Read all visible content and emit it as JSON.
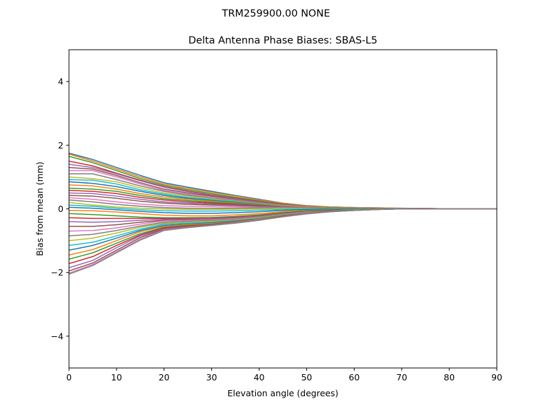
{
  "figure": {
    "suptitle": "TRM259900.00    NONE"
  },
  "chart_data": {
    "type": "line",
    "title": "Delta Antenna Phase Biases: SBAS-L5",
    "xlabel": "Elevation angle (degrees)",
    "ylabel": "Bias from mean (mm)",
    "xlim": [
      0,
      90
    ],
    "ylim": [
      -5,
      5
    ],
    "xticks": [
      0,
      10,
      20,
      30,
      40,
      50,
      60,
      70,
      80,
      90
    ],
    "xtick_labels": [
      "0",
      "10",
      "20",
      "30",
      "40",
      "50",
      "60",
      "70",
      "80",
      "90"
    ],
    "yticks": [
      -4,
      -2,
      0,
      2,
      4
    ],
    "ytick_labels": [
      "−4",
      "−2",
      "0",
      "2",
      "4"
    ],
    "grid": false,
    "legend": false,
    "x": [
      0,
      5,
      10,
      15,
      20,
      25,
      30,
      35,
      40,
      45,
      50,
      55,
      60,
      65,
      70,
      75,
      80,
      85,
      90
    ],
    "colors": [
      "#1f77b4",
      "#ff7f0e",
      "#2ca02c",
      "#d62728",
      "#9467bd",
      "#8c564b",
      "#e377c2",
      "#7f7f7f",
      "#bcbd22",
      "#17becf"
    ],
    "series": [
      {
        "values": [
          1.75,
          1.55,
          1.3,
          1.05,
          0.82,
          0.68,
          0.55,
          0.42,
          0.3,
          0.18,
          0.1,
          0.06,
          0.04,
          0.03,
          0.02,
          0.01,
          0.0,
          0.0,
          0.0
        ]
      },
      {
        "values": [
          1.72,
          1.5,
          1.25,
          1.0,
          0.78,
          0.64,
          0.52,
          0.4,
          0.28,
          0.17,
          0.1,
          0.06,
          0.04,
          0.03,
          0.02,
          0.01,
          0.0,
          0.0,
          0.0
        ]
      },
      {
        "values": [
          1.65,
          1.45,
          1.2,
          0.95,
          0.74,
          0.6,
          0.48,
          0.36,
          0.25,
          0.15,
          0.09,
          0.05,
          0.03,
          0.02,
          0.01,
          0.01,
          0.0,
          0.0,
          0.0
        ]
      },
      {
        "values": [
          1.5,
          1.35,
          1.12,
          0.9,
          0.7,
          0.56,
          0.44,
          0.33,
          0.23,
          0.14,
          0.08,
          0.05,
          0.03,
          0.02,
          0.01,
          0.01,
          0.0,
          0.0,
          0.0
        ]
      },
      {
        "values": [
          1.4,
          1.3,
          1.1,
          0.88,
          0.68,
          0.54,
          0.42,
          0.32,
          0.22,
          0.13,
          0.08,
          0.05,
          0.03,
          0.02,
          0.01,
          0.01,
          0.0,
          0.0,
          0.0
        ]
      },
      {
        "values": [
          1.3,
          1.25,
          1.05,
          0.82,
          0.62,
          0.5,
          0.4,
          0.3,
          0.2,
          0.12,
          0.07,
          0.04,
          0.03,
          0.02,
          0.01,
          0.0,
          0.0,
          0.0,
          0.0
        ]
      },
      {
        "values": [
          1.2,
          1.2,
          1.0,
          0.78,
          0.58,
          0.46,
          0.37,
          0.28,
          0.19,
          0.11,
          0.07,
          0.04,
          0.03,
          0.02,
          0.01,
          0.0,
          0.0,
          0.0,
          0.0
        ]
      },
      {
        "values": [
          1.1,
          1.1,
          0.92,
          0.72,
          0.55,
          0.43,
          0.34,
          0.26,
          0.18,
          0.1,
          0.06,
          0.04,
          0.02,
          0.02,
          0.01,
          0.0,
          0.0,
          0.0,
          0.0
        ]
      },
      {
        "values": [
          1.0,
          0.95,
          0.85,
          0.66,
          0.5,
          0.4,
          0.32,
          0.24,
          0.16,
          0.1,
          0.06,
          0.04,
          0.02,
          0.01,
          0.01,
          0.0,
          0.0,
          0.0,
          0.0
        ]
      },
      {
        "values": [
          0.92,
          0.9,
          0.78,
          0.6,
          0.46,
          0.36,
          0.29,
          0.22,
          0.15,
          0.09,
          0.05,
          0.03,
          0.02,
          0.01,
          0.01,
          0.0,
          0.0,
          0.0,
          0.0
        ]
      },
      {
        "values": [
          0.85,
          0.8,
          0.7,
          0.55,
          0.42,
          0.33,
          0.26,
          0.2,
          0.14,
          0.08,
          0.05,
          0.03,
          0.02,
          0.01,
          0.0,
          0.0,
          0.0,
          0.0,
          0.0
        ]
      },
      {
        "values": [
          0.75,
          0.72,
          0.62,
          0.48,
          0.37,
          0.3,
          0.24,
          0.18,
          0.13,
          0.08,
          0.05,
          0.03,
          0.02,
          0.01,
          0.0,
          0.0,
          0.0,
          0.0,
          0.0
        ]
      },
      {
        "values": [
          0.65,
          0.62,
          0.55,
          0.42,
          0.32,
          0.26,
          0.21,
          0.16,
          0.12,
          0.07,
          0.04,
          0.03,
          0.02,
          0.01,
          0.0,
          0.0,
          0.0,
          0.0,
          0.0
        ]
      },
      {
        "values": [
          0.58,
          0.55,
          0.48,
          0.36,
          0.28,
          0.22,
          0.18,
          0.14,
          0.1,
          0.06,
          0.04,
          0.02,
          0.01,
          0.01,
          0.0,
          0.0,
          0.0,
          0.0,
          0.0
        ]
      },
      {
        "values": [
          0.5,
          0.48,
          0.4,
          0.3,
          0.22,
          0.18,
          0.15,
          0.12,
          0.09,
          0.06,
          0.04,
          0.02,
          0.01,
          0.01,
          0.0,
          0.0,
          0.0,
          0.0,
          0.0
        ]
      },
      {
        "values": [
          0.42,
          0.4,
          0.33,
          0.24,
          0.18,
          0.14,
          0.12,
          0.1,
          0.08,
          0.05,
          0.03,
          0.02,
          0.01,
          0.0,
          0.0,
          0.0,
          0.0,
          0.0,
          0.0
        ]
      },
      {
        "values": [
          0.35,
          0.3,
          0.22,
          0.15,
          0.1,
          0.08,
          0.07,
          0.06,
          0.05,
          0.04,
          0.03,
          0.02,
          0.01,
          0.0,
          0.0,
          0.0,
          0.0,
          0.0,
          0.0
        ]
      },
      {
        "values": [
          0.28,
          0.22,
          0.14,
          0.08,
          0.04,
          0.02,
          0.02,
          0.02,
          0.03,
          0.03,
          0.03,
          0.02,
          0.01,
          0.0,
          0.0,
          0.0,
          0.0,
          0.0,
          0.0
        ]
      },
      {
        "values": [
          0.2,
          0.12,
          0.06,
          0.02,
          0.0,
          -0.02,
          -0.02,
          -0.01,
          0.0,
          0.01,
          0.02,
          0.02,
          0.01,
          0.0,
          0.0,
          0.0,
          0.0,
          0.0,
          0.0
        ]
      },
      {
        "values": [
          0.12,
          0.08,
          0.02,
          -0.03,
          -0.06,
          -0.07,
          -0.07,
          -0.06,
          -0.04,
          -0.02,
          0.0,
          0.01,
          0.01,
          0.0,
          0.0,
          0.0,
          0.0,
          0.0,
          0.0
        ]
      },
      {
        "values": [
          0.05,
          0.02,
          -0.03,
          -0.08,
          -0.12,
          -0.14,
          -0.14,
          -0.12,
          -0.09,
          -0.05,
          -0.02,
          0.0,
          0.0,
          0.0,
          0.0,
          0.0,
          0.0,
          0.0,
          0.0
        ]
      },
      {
        "values": [
          -0.05,
          -0.06,
          -0.1,
          -0.15,
          -0.2,
          -0.22,
          -0.22,
          -0.19,
          -0.15,
          -0.09,
          -0.05,
          -0.02,
          -0.01,
          0.0,
          0.0,
          0.0,
          0.0,
          0.0,
          0.0
        ]
      },
      {
        "values": [
          -0.15,
          -0.18,
          -0.22,
          -0.26,
          -0.28,
          -0.28,
          -0.27,
          -0.24,
          -0.19,
          -0.12,
          -0.06,
          -0.03,
          -0.01,
          0.0,
          0.0,
          0.0,
          0.0,
          0.0,
          0.0
        ]
      },
      {
        "values": [
          -0.28,
          -0.3,
          -0.3,
          -0.3,
          -0.3,
          -0.3,
          -0.29,
          -0.26,
          -0.21,
          -0.14,
          -0.08,
          -0.04,
          -0.02,
          -0.01,
          0.0,
          0.0,
          0.0,
          0.0,
          0.0
        ]
      },
      {
        "values": [
          -0.4,
          -0.42,
          -0.4,
          -0.36,
          -0.33,
          -0.32,
          -0.3,
          -0.27,
          -0.22,
          -0.15,
          -0.09,
          -0.05,
          -0.02,
          -0.01,
          0.0,
          0.0,
          0.0,
          0.0,
          0.0
        ]
      },
      {
        "values": [
          -0.55,
          -0.55,
          -0.5,
          -0.42,
          -0.36,
          -0.34,
          -0.32,
          -0.29,
          -0.23,
          -0.16,
          -0.1,
          -0.05,
          -0.03,
          -0.01,
          0.0,
          0.0,
          0.0,
          0.0,
          0.0
        ]
      },
      {
        "values": [
          -0.7,
          -0.68,
          -0.6,
          -0.48,
          -0.38,
          -0.36,
          -0.34,
          -0.31,
          -0.25,
          -0.17,
          -0.1,
          -0.06,
          -0.03,
          -0.01,
          0.0,
          0.0,
          0.0,
          0.0,
          0.0
        ]
      },
      {
        "values": [
          -0.85,
          -0.8,
          -0.68,
          -0.54,
          -0.42,
          -0.39,
          -0.36,
          -0.33,
          -0.26,
          -0.18,
          -0.11,
          -0.06,
          -0.03,
          -0.01,
          0.0,
          0.0,
          0.0,
          0.0,
          0.0
        ]
      },
      {
        "values": [
          -1.0,
          -0.92,
          -0.76,
          -0.58,
          -0.45,
          -0.42,
          -0.39,
          -0.35,
          -0.28,
          -0.19,
          -0.12,
          -0.07,
          -0.03,
          -0.01,
          0.0,
          0.0,
          0.0,
          0.0,
          0.0
        ]
      },
      {
        "values": [
          -1.15,
          -1.05,
          -0.85,
          -0.64,
          -0.48,
          -0.45,
          -0.42,
          -0.37,
          -0.3,
          -0.2,
          -0.12,
          -0.07,
          -0.04,
          -0.02,
          0.0,
          0.0,
          0.0,
          0.0,
          0.0
        ]
      },
      {
        "values": [
          -1.3,
          -1.15,
          -0.92,
          -0.68,
          -0.52,
          -0.48,
          -0.44,
          -0.38,
          -0.31,
          -0.21,
          -0.13,
          -0.07,
          -0.04,
          -0.02,
          0.0,
          0.0,
          0.0,
          0.0,
          0.0
        ]
      },
      {
        "values": [
          -1.45,
          -1.28,
          -1.0,
          -0.72,
          -0.55,
          -0.5,
          -0.46,
          -0.4,
          -0.32,
          -0.22,
          -0.13,
          -0.08,
          -0.04,
          -0.02,
          0.0,
          0.0,
          0.0,
          0.0,
          0.0
        ]
      },
      {
        "values": [
          -1.58,
          -1.38,
          -1.08,
          -0.78,
          -0.58,
          -0.52,
          -0.48,
          -0.41,
          -0.33,
          -0.23,
          -0.14,
          -0.08,
          -0.04,
          -0.02,
          0.0,
          0.0,
          0.0,
          0.0,
          0.0
        ]
      },
      {
        "values": [
          -1.72,
          -1.5,
          -1.15,
          -0.82,
          -0.6,
          -0.54,
          -0.49,
          -0.42,
          -0.34,
          -0.23,
          -0.14,
          -0.08,
          -0.05,
          -0.02,
          0.0,
          0.0,
          0.0,
          0.0,
          0.0
        ]
      },
      {
        "values": [
          -1.85,
          -1.62,
          -1.22,
          -0.85,
          -0.62,
          -0.56,
          -0.5,
          -0.43,
          -0.34,
          -0.24,
          -0.15,
          -0.09,
          -0.05,
          -0.02,
          0.0,
          0.0,
          0.0,
          0.0,
          0.0
        ]
      },
      {
        "values": [
          -1.95,
          -1.7,
          -1.3,
          -0.9,
          -0.64,
          -0.57,
          -0.51,
          -0.44,
          -0.35,
          -0.24,
          -0.15,
          -0.09,
          -0.05,
          -0.02,
          0.0,
          0.0,
          0.0,
          0.0,
          0.0
        ]
      },
      {
        "values": [
          -2.02,
          -1.75,
          -1.35,
          -0.95,
          -0.66,
          -0.58,
          -0.52,
          -0.44,
          -0.35,
          -0.25,
          -0.15,
          -0.09,
          -0.05,
          -0.02,
          0.0,
          0.0,
          0.0,
          0.0,
          0.0
        ]
      },
      {
        "values": [
          -2.05,
          -1.78,
          -1.38,
          -0.98,
          -0.68,
          -0.59,
          -0.52,
          -0.45,
          -0.36,
          -0.25,
          -0.16,
          -0.09,
          -0.05,
          -0.02,
          0.0,
          0.0,
          0.0,
          0.0,
          0.0
        ]
      }
    ]
  }
}
